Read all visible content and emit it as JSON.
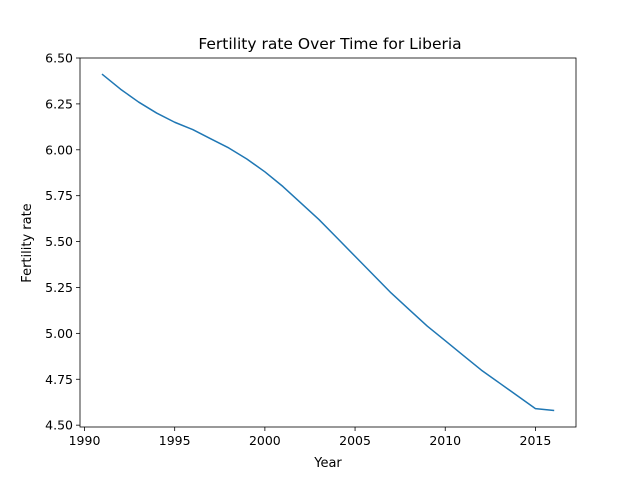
{
  "chart_data": {
    "type": "line",
    "title": "Fertility rate Over Time for Liberia",
    "xlabel": "Year",
    "ylabel": "Fertility rate",
    "xlim": [
      1989.75,
      2017.25
    ],
    "ylim": [
      4.49,
      6.5
    ],
    "xticks": [
      1990,
      1995,
      2000,
      2005,
      2010,
      2015
    ],
    "yticks": [
      4.5,
      4.75,
      5.0,
      5.25,
      5.5,
      5.75,
      6.0,
      6.25,
      6.5
    ],
    "xtick_labels": [
      "1990",
      "1995",
      "2000",
      "2005",
      "2010",
      "2015"
    ],
    "ytick_labels": [
      "4.50",
      "4.75",
      "5.00",
      "5.25",
      "5.50",
      "5.75",
      "6.00",
      "6.25",
      "6.50"
    ],
    "grid": false,
    "series": [
      {
        "color": "#1f77b4",
        "x": [
          1991,
          1992,
          1993,
          1994,
          1995,
          1996,
          1997,
          1998,
          1999,
          2000,
          2001,
          2002,
          2003,
          2004,
          2005,
          2006,
          2007,
          2008,
          2009,
          2010,
          2011,
          2012,
          2013,
          2014,
          2015,
          2016
        ],
        "y": [
          6.41,
          6.33,
          6.26,
          6.2,
          6.15,
          6.11,
          6.06,
          6.01,
          5.95,
          5.88,
          5.8,
          5.71,
          5.62,
          5.52,
          5.42,
          5.32,
          5.22,
          5.13,
          5.04,
          4.96,
          4.88,
          4.8,
          4.73,
          4.66,
          4.59,
          4.58
        ]
      }
    ]
  }
}
